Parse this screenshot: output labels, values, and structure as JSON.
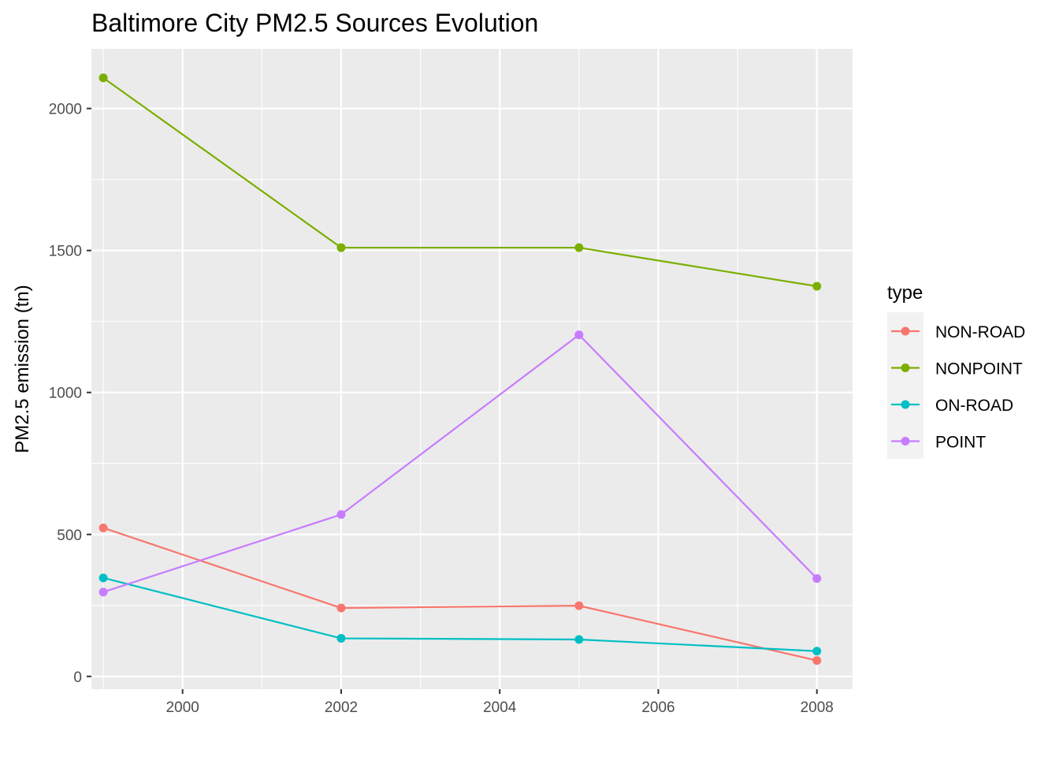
{
  "chart_data": {
    "type": "line",
    "title": "Baltimore City PM2.5 Sources Evolution",
    "xlabel": "",
    "ylabel": "PM2.5 emission (tn)",
    "x": [
      1999,
      2002,
      2005,
      2008
    ],
    "xlim": [
      1998.85,
      2008.45
    ],
    "ylim": [
      -45,
      2210
    ],
    "x_ticks": [
      2000,
      2002,
      2004,
      2006,
      2008
    ],
    "y_ticks": [
      0,
      500,
      1000,
      1500,
      2000
    ],
    "grid": true,
    "legend": {
      "title": "type",
      "position": "right"
    },
    "series": [
      {
        "name": "NON-ROAD",
        "color": "#F8766D",
        "values": [
          523,
          241,
          249,
          56
        ]
      },
      {
        "name": "NONPOINT",
        "color": "#7CAE00",
        "values": [
          2108,
          1510,
          1510,
          1374
        ]
      },
      {
        "name": "ON-ROAD",
        "color": "#00BFC4",
        "values": [
          347,
          134,
          130,
          89
        ]
      },
      {
        "name": "POINT",
        "color": "#C77CFF",
        "values": [
          297,
          570,
          1203,
          345
        ]
      }
    ]
  }
}
